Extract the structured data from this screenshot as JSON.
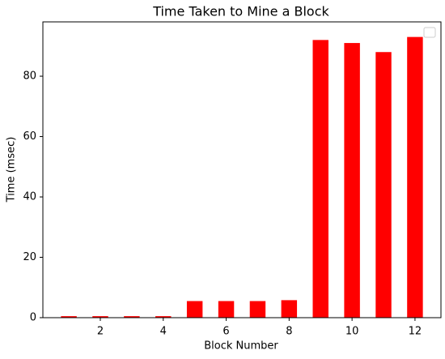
{
  "chart_data": {
    "type": "bar",
    "title": "Time Taken to Mine a Block",
    "x_label": "Block Number",
    "y_label": "Time (msec)",
    "x": [
      1,
      2,
      3,
      4,
      5,
      6,
      7,
      8,
      9,
      10,
      11,
      12
    ],
    "values": [
      0.5,
      0.5,
      0.5,
      0.5,
      5.5,
      5.5,
      5.5,
      5.8,
      92,
      91,
      88,
      93
    ],
    "color": "#ff0000",
    "xlim": [
      0.175,
      12.825
    ],
    "xticks": [
      2,
      4,
      6,
      8,
      10,
      12
    ],
    "ylim": [
      0,
      98
    ],
    "yticks": [
      0,
      20,
      40,
      60,
      80
    ]
  }
}
